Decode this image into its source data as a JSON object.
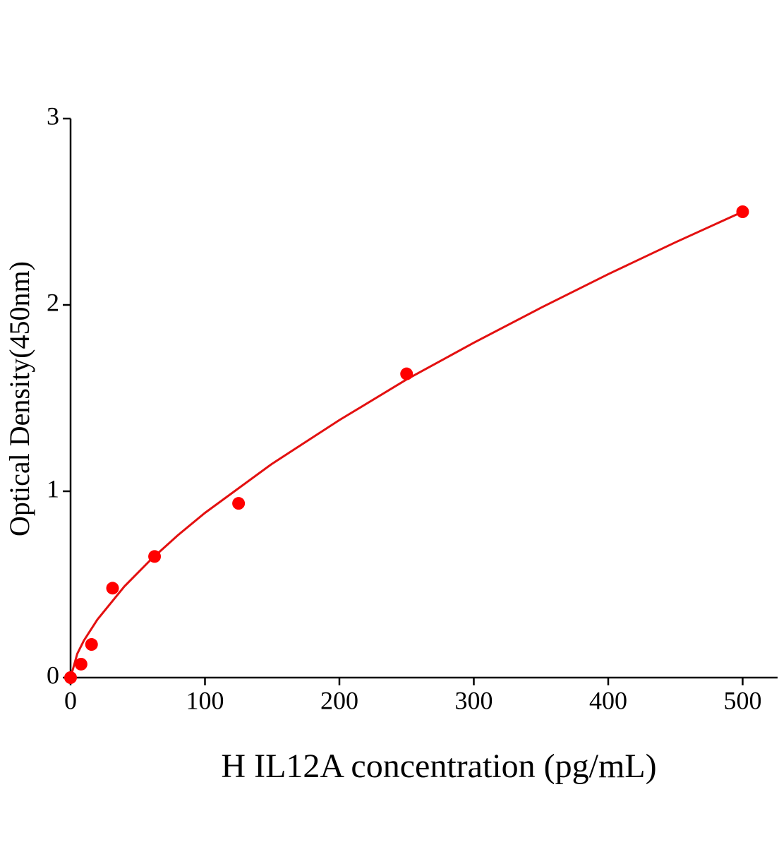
{
  "chart_data": {
    "type": "scatter",
    "x_label": "H IL12A concentration (pg/mL)",
    "y_label": "Optical Density(450nm)",
    "x": [
      0,
      7.8,
      15.6,
      31.25,
      62.5,
      125,
      250,
      500
    ],
    "values": [
      0,
      0.072,
      0.178,
      0.48,
      0.65,
      0.935,
      1.63,
      2.5
    ],
    "color": "#ff0000",
    "curve": {
      "color": "#e31010",
      "x": [
        0,
        5,
        10,
        20,
        40,
        60,
        80,
        100,
        150,
        200,
        250,
        300,
        350,
        400,
        450,
        500
      ],
      "values": [
        0,
        0.128,
        0.2,
        0.312,
        0.489,
        0.635,
        0.765,
        0.884,
        1.148,
        1.382,
        1.6,
        1.797,
        1.985,
        2.165,
        2.336,
        2.5
      ]
    },
    "xlim": [
      0,
      526
    ],
    "ylim": [
      0,
      3
    ],
    "xticks": [
      0,
      100,
      200,
      300,
      400,
      500
    ],
    "yticks": [
      0,
      1,
      2,
      3
    ]
  }
}
